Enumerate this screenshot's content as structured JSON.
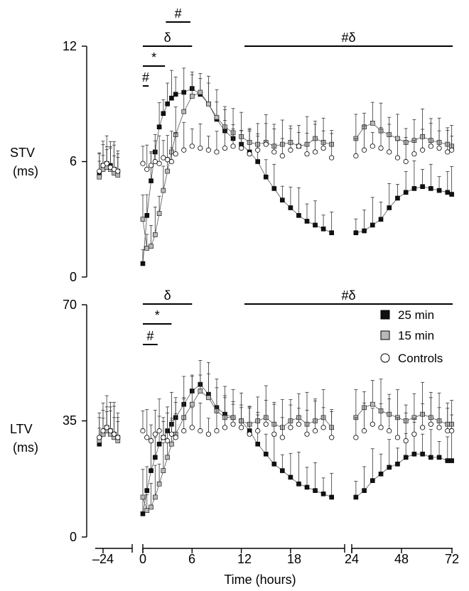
{
  "colors": {
    "series_25": "#111111",
    "series_15": "#b8b8b8",
    "controls_fill": "#ffffff",
    "ink": "#000000"
  },
  "chart_data": [
    {
      "type": "scatter",
      "ylabel_line1": "STV",
      "ylabel_line2": "(ms)",
      "ylim": [
        0,
        12
      ],
      "yticks": [
        "0",
        "6",
        "12"
      ],
      "xlabel": "",
      "grid": false,
      "legend": "none",
      "significance_bars": [
        {
          "label": "#",
          "x": [
            2.8,
            5.8
          ]
        },
        {
          "label": "δ",
          "x": [
            0,
            6
          ]
        },
        {
          "label": "*",
          "x": [
            0,
            2.7
          ]
        },
        {
          "label": "#",
          "x": [
            0,
            0.7
          ]
        },
        {
          "label": "#δ",
          "x": [
            12,
            72
          ]
        }
      ],
      "series": [
        {
          "name": "25 min",
          "segments": [
            {
              "x": [
                -26,
                -24,
                -22,
                -20,
                -18,
                -16
              ],
              "y": [
                5.3,
                5.8,
                5.9,
                5.8,
                5.6,
                5.5
              ]
            },
            {
              "x": [
                0,
                0.5,
                1,
                1.5,
                2,
                2.5,
                3,
                3.5,
                4,
                5,
                6,
                7,
                8,
                9,
                10,
                11
              ],
              "y": [
                0.7,
                3.2,
                5.0,
                6.5,
                7.8,
                8.5,
                9.0,
                9.3,
                9.5,
                9.6,
                9.8,
                9.5,
                9.0,
                8.2,
                7.6,
                7.2
              ]
            },
            {
              "x": [
                12,
                13,
                14,
                15,
                16,
                17,
                18,
                19,
                20,
                21,
                22,
                23
              ],
              "y": [
                6.9,
                6.5,
                6.0,
                5.2,
                4.6,
                4.0,
                3.6,
                3.2,
                2.9,
                2.7,
                2.5,
                2.3
              ]
            },
            {
              "x": [
                26,
                30,
                34,
                38,
                42,
                46,
                50,
                54,
                58,
                62,
                66,
                70,
                72
              ],
              "y": [
                2.3,
                2.4,
                2.7,
                3.0,
                3.6,
                4.1,
                4.4,
                4.6,
                4.7,
                4.6,
                4.5,
                4.4,
                4.3
              ]
            }
          ]
        },
        {
          "name": "15 min",
          "segments": [
            {
              "x": [
                -26,
                -24,
                -22,
                -20,
                -18,
                -16
              ],
              "y": [
                5.2,
                5.6,
                5.7,
                5.6,
                5.4,
                5.3
              ]
            },
            {
              "x": [
                0,
                0.5,
                1,
                1.5,
                2,
                2.5,
                3,
                3.5,
                4,
                5,
                6,
                7,
                8,
                9,
                10,
                11
              ],
              "y": [
                3.0,
                1.5,
                1.6,
                2.2,
                3.3,
                4.5,
                5.5,
                6.5,
                7.4,
                8.6,
                9.4,
                9.6,
                9.0,
                8.3,
                7.8,
                7.5
              ]
            },
            {
              "x": [
                12,
                13,
                14,
                15,
                16,
                17,
                18,
                19,
                20,
                21,
                22,
                23
              ],
              "y": [
                7.3,
                7.0,
                6.9,
                7.0,
                6.8,
                6.9,
                7.0,
                6.8,
                6.9,
                7.2,
                7.0,
                6.9
              ]
            },
            {
              "x": [
                26,
                30,
                34,
                38,
                42,
                46,
                50,
                54,
                58,
                62,
                66,
                70,
                72
              ],
              "y": [
                7.2,
                7.8,
                8.0,
                7.6,
                7.4,
                7.2,
                7.0,
                7.1,
                7.3,
                7.1,
                7.0,
                6.9,
                6.8
              ]
            }
          ]
        },
        {
          "name": "Controls",
          "segments": [
            {
              "x": [
                -26,
                -24,
                -22,
                -20,
                -18,
                -16
              ],
              "y": [
                5.5,
                5.8,
                5.9,
                5.7,
                5.6,
                5.5
              ]
            },
            {
              "x": [
                0,
                0.5,
                1,
                1.5,
                2,
                2.5,
                3,
                3.5,
                4,
                5,
                6,
                7,
                8,
                9,
                10,
                11
              ],
              "y": [
                5.9,
                5.6,
                5.8,
                6.0,
                5.9,
                6.2,
                6.1,
                6.0,
                6.4,
                6.6,
                6.8,
                6.7,
                6.6,
                6.5,
                6.7,
                6.8
              ]
            },
            {
              "x": [
                12,
                13,
                14,
                15,
                16,
                17,
                18,
                19,
                20,
                21,
                22,
                23
              ],
              "y": [
                6.7,
                6.4,
                6.6,
                6.9,
                6.5,
                6.3,
                6.6,
                6.8,
                6.4,
                6.5,
                6.7,
                6.2
              ]
            },
            {
              "x": [
                26,
                30,
                34,
                38,
                42,
                46,
                50,
                54,
                58,
                62,
                66,
                70,
                72
              ],
              "y": [
                6.3,
                6.6,
                6.8,
                6.7,
                6.5,
                6.2,
                6.0,
                6.4,
                6.6,
                6.8,
                6.7,
                6.5,
                6.6
              ]
            }
          ]
        }
      ]
    },
    {
      "type": "scatter",
      "ylabel_line1": "LTV",
      "ylabel_line2": "(ms)",
      "ylim": [
        0,
        70
      ],
      "yticks": [
        "0",
        "35",
        "70"
      ],
      "xlabel": "Time (hours)",
      "xticks": [
        "–24",
        "0",
        "6",
        "12",
        "18",
        "24",
        "48",
        "72"
      ],
      "grid": false,
      "legend": "top-right",
      "significance_bars": [
        {
          "label": "δ",
          "x": [
            0,
            6
          ]
        },
        {
          "label": "*",
          "x": [
            0,
            3.5
          ]
        },
        {
          "label": "#",
          "x": [
            0,
            1.8
          ]
        },
        {
          "label": "#δ",
          "x": [
            12,
            72
          ]
        }
      ],
      "series": [
        {
          "name": "25 min",
          "segments": [
            {
              "x": [
                -26,
                -24,
                -22,
                -20,
                -18,
                -16
              ],
              "y": [
                28,
                31,
                33,
                32,
                31,
                30
              ]
            },
            {
              "x": [
                0,
                0.5,
                1,
                1.5,
                2,
                2.5,
                3,
                3.5,
                4,
                5,
                6,
                7,
                8,
                9,
                10,
                11
              ],
              "y": [
                7,
                14,
                20,
                24,
                28,
                30,
                32,
                34,
                36,
                40,
                44,
                46,
                43,
                39,
                37,
                36
              ]
            },
            {
              "x": [
                12,
                13,
                14,
                15,
                16,
                17,
                18,
                19,
                20,
                21,
                22,
                23
              ],
              "y": [
                35,
                32,
                28,
                25,
                22,
                20,
                18,
                16,
                15,
                14,
                13,
                12
              ]
            },
            {
              "x": [
                26,
                30,
                34,
                38,
                42,
                46,
                50,
                54,
                58,
                62,
                66,
                70,
                72
              ],
              "y": [
                12,
                14,
                17,
                19,
                21,
                22,
                24,
                25,
                25,
                24,
                24,
                23,
                23
              ]
            }
          ]
        },
        {
          "name": "15 min",
          "segments": [
            {
              "x": [
                -26,
                -24,
                -22,
                -20,
                -18,
                -16
              ],
              "y": [
                29,
                31,
                32,
                31,
                30,
                29
              ]
            },
            {
              "x": [
                0,
                0.5,
                1,
                1.5,
                2,
                2.5,
                3,
                3.5,
                4,
                5,
                6,
                7,
                8,
                9,
                10,
                11
              ],
              "y": [
                12,
                8,
                9,
                12,
                16,
                20,
                24,
                28,
                31,
                36,
                40,
                44,
                42,
                38,
                36,
                36
              ]
            },
            {
              "x": [
                12,
                13,
                14,
                15,
                16,
                17,
                18,
                19,
                20,
                21,
                22,
                23
              ],
              "y": [
                35,
                34,
                35,
                36,
                34,
                33,
                35,
                36,
                34,
                35,
                36,
                33
              ]
            },
            {
              "x": [
                26,
                30,
                34,
                38,
                42,
                46,
                50,
                54,
                58,
                62,
                66,
                70,
                72
              ],
              "y": [
                36,
                39,
                40,
                38,
                37,
                36,
                35,
                36,
                37,
                36,
                35,
                34,
                34
              ]
            }
          ]
        },
        {
          "name": "Controls",
          "segments": [
            {
              "x": [
                -26,
                -24,
                -22,
                -20,
                -18,
                -16
              ],
              "y": [
                30,
                32,
                33,
                32,
                31,
                30
              ]
            },
            {
              "x": [
                0,
                0.5,
                1,
                1.5,
                2,
                2.5,
                3,
                3.5,
                4,
                5,
                6,
                7,
                8,
                9,
                10,
                11
              ],
              "y": [
                32,
                30,
                29,
                31,
                32,
                30,
                29,
                31,
                30,
                32,
                33,
                32,
                31,
                32,
                33,
                34
              ]
            },
            {
              "x": [
                12,
                13,
                14,
                15,
                16,
                17,
                18,
                19,
                20,
                21,
                22,
                23
              ],
              "y": [
                33,
                31,
                32,
                34,
                31,
                30,
                33,
                34,
                31,
                32,
                33,
                30
              ]
            },
            {
              "x": [
                26,
                30,
                34,
                38,
                42,
                46,
                50,
                54,
                58,
                62,
                66,
                70,
                72
              ],
              "y": [
                30,
                32,
                34,
                33,
                32,
                30,
                29,
                31,
                33,
                34,
                33,
                32,
                32
              ]
            }
          ]
        }
      ]
    }
  ]
}
